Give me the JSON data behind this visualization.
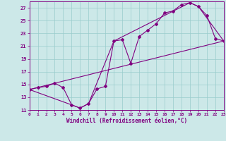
{
  "xlabel": "Windchill (Refroidissement éolien,°C)",
  "bg_color": "#cce8e8",
  "line_color": "#800080",
  "grid_color": "#99cccc",
  "xmin": 0,
  "xmax": 23,
  "ymin": 11,
  "ymax": 28,
  "x_ticks": [
    0,
    1,
    2,
    3,
    4,
    5,
    6,
    7,
    8,
    9,
    10,
    11,
    12,
    13,
    14,
    15,
    16,
    17,
    18,
    19,
    20,
    21,
    22,
    23
  ],
  "y_ticks": [
    11,
    13,
    15,
    17,
    19,
    21,
    23,
    25,
    27
  ],
  "line1_x": [
    0,
    1,
    2,
    3,
    4,
    5,
    6,
    7,
    8,
    9,
    10,
    11,
    12,
    13,
    14,
    15,
    16,
    17,
    18,
    19,
    20,
    21,
    22,
    23
  ],
  "line1_y": [
    14.2,
    14.5,
    14.7,
    15.2,
    14.5,
    11.8,
    11.3,
    12.0,
    14.3,
    14.7,
    21.8,
    22.0,
    18.3,
    22.5,
    23.5,
    24.5,
    26.2,
    26.5,
    27.5,
    27.8,
    27.2,
    25.8,
    22.2,
    21.8
  ],
  "line2_x": [
    0,
    23
  ],
  "line2_y": [
    14.2,
    21.8
  ],
  "line3_x": [
    0,
    5,
    6,
    7,
    10,
    19,
    20,
    23
  ],
  "line3_y": [
    14.2,
    11.8,
    11.3,
    12.0,
    21.8,
    27.8,
    27.2,
    21.8
  ]
}
